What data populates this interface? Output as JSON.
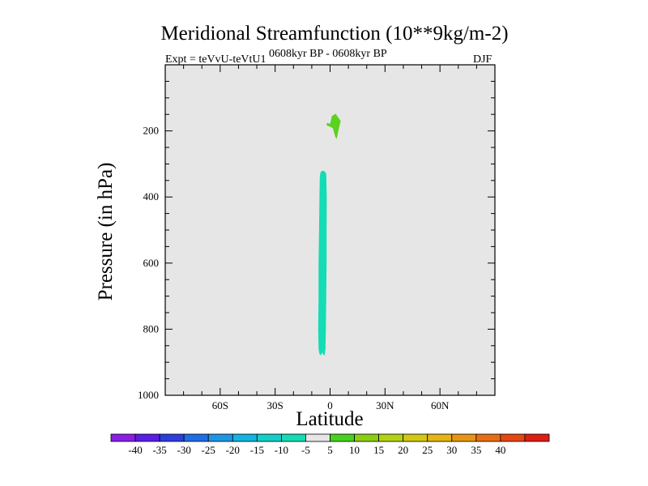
{
  "chart_data": {
    "type": "contour",
    "title": "Meridional Streamfunction (10**9kg/m-2)",
    "subtitle_left": "Expt = teVvU-teVtU1",
    "subtitle_center": "0608kyr BP - 0608kyr BP",
    "subtitle_right": "DJF",
    "xlabel": "Latitude",
    "ylabel": "Pressure (in hPa)",
    "xlim": [
      -90,
      90
    ],
    "ylim": [
      1000,
      0
    ],
    "y_reversed": true,
    "x_ticks": [
      {
        "value": -60,
        "label": "60S"
      },
      {
        "value": -30,
        "label": "30S"
      },
      {
        "value": 0,
        "label": "0"
      },
      {
        "value": 30,
        "label": "30N"
      },
      {
        "value": 60,
        "label": "60N"
      }
    ],
    "y_ticks": [
      {
        "value": 200,
        "label": "200"
      },
      {
        "value": 400,
        "label": "400"
      },
      {
        "value": 600,
        "label": "600"
      },
      {
        "value": 800,
        "label": "800"
      },
      {
        "value": 1000,
        "label": "1000"
      }
    ],
    "background_color": "#e6e6e6",
    "colorbar": {
      "labels": [
        "-40",
        "-35",
        "-30",
        "-25",
        "-20",
        "-15",
        "-10",
        "-5",
        "5",
        "10",
        "15",
        "20",
        "25",
        "30",
        "35",
        "40"
      ],
      "colors": [
        "#8a1ee6",
        "#5a1ee6",
        "#2e3edc",
        "#1e6ee6",
        "#1e96e6",
        "#12b4e0",
        "#14cfc8",
        "#14dcb4",
        "#e6e6e6",
        "#46d21e",
        "#8ccd14",
        "#b4d214",
        "#d2c814",
        "#e6b414",
        "#e69614",
        "#e66e14",
        "#e64614",
        "#dc1e14"
      ]
    },
    "regions": [
      {
        "name": "negative-cell",
        "level_range": "-10 to -5",
        "color": "#14dcb4",
        "outline": [
          [
            -5.2,
            325
          ],
          [
            -4.2,
            320
          ],
          [
            -3.0,
            322
          ],
          [
            -2.1,
            330
          ],
          [
            -1.8,
            400
          ],
          [
            -1.9,
            500
          ],
          [
            -1.9,
            600
          ],
          [
            -2.1,
            700
          ],
          [
            -2.3,
            800
          ],
          [
            -2.5,
            860
          ],
          [
            -3.0,
            880
          ],
          [
            -4.0,
            875
          ],
          [
            -4.5,
            870
          ],
          [
            -5.0,
            880
          ],
          [
            -5.8,
            875
          ],
          [
            -6.3,
            860
          ],
          [
            -6.5,
            800
          ],
          [
            -6.3,
            700
          ],
          [
            -6.3,
            600
          ],
          [
            -6.0,
            500
          ],
          [
            -5.8,
            400
          ],
          [
            -5.6,
            340
          ]
        ]
      },
      {
        "name": "positive-cell",
        "level_range": "5 to 10",
        "color": "#5ad21e",
        "outline": [
          [
            1.0,
            155
          ],
          [
            3.0,
            148
          ],
          [
            5.8,
            170
          ],
          [
            4.5,
            200
          ],
          [
            3.6,
            225
          ],
          [
            2.8,
            217
          ],
          [
            1.5,
            192
          ],
          [
            -0.5,
            186
          ],
          [
            -1.6,
            184
          ],
          [
            -2.0,
            179
          ],
          [
            -1.3,
            176
          ],
          [
            0.0,
            179
          ]
        ]
      }
    ]
  }
}
